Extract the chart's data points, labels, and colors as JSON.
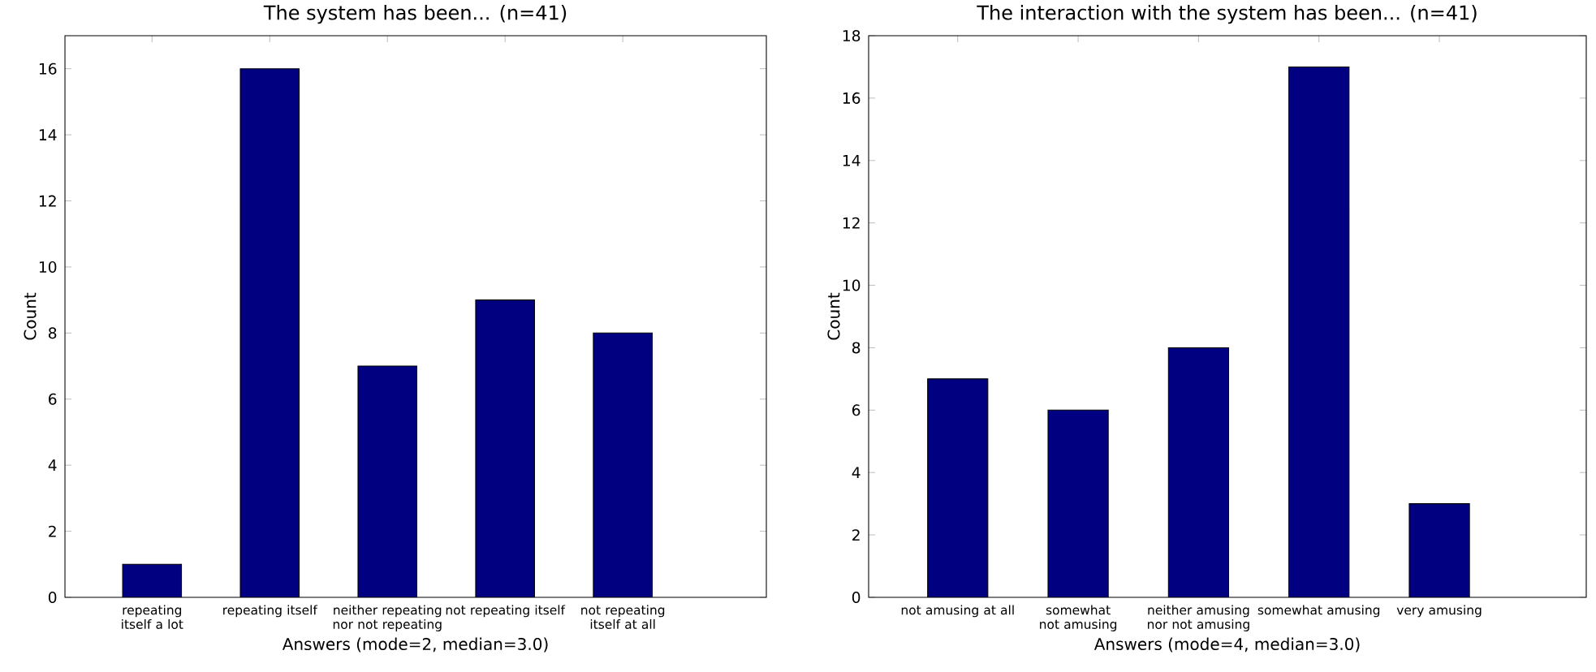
{
  "chart_data": [
    {
      "type": "bar",
      "title": "The system has been... (n=41)",
      "xlabel": "Answers (mode=2, median=3.0)",
      "ylabel": "Count",
      "categories": [
        "repeating itself a lot",
        "repeating itself",
        "neither repeating nor not repeating",
        "not repeating itself",
        "not repeating itself at all"
      ],
      "values": [
        1,
        16,
        7,
        9,
        8
      ],
      "color": "#000080",
      "ylim": [
        0,
        17
      ],
      "yticks": [
        0,
        2,
        4,
        6,
        8,
        10,
        12,
        14,
        16
      ]
    },
    {
      "type": "bar",
      "title": "The interaction with the system has been... (n=41)",
      "xlabel": "Answers (mode=4, median=3.0)",
      "ylabel": "Count",
      "categories": [
        "not amusing at all",
        "somewhat not amusing",
        "neither amusing nor not amusing",
        "somewhat amusing",
        "very amusing"
      ],
      "values": [
        7,
        6,
        8,
        17,
        3
      ],
      "color": "#000080",
      "ylim": [
        0,
        18
      ],
      "yticks": [
        0,
        2,
        4,
        6,
        8,
        10,
        12,
        14,
        16,
        18
      ]
    }
  ]
}
